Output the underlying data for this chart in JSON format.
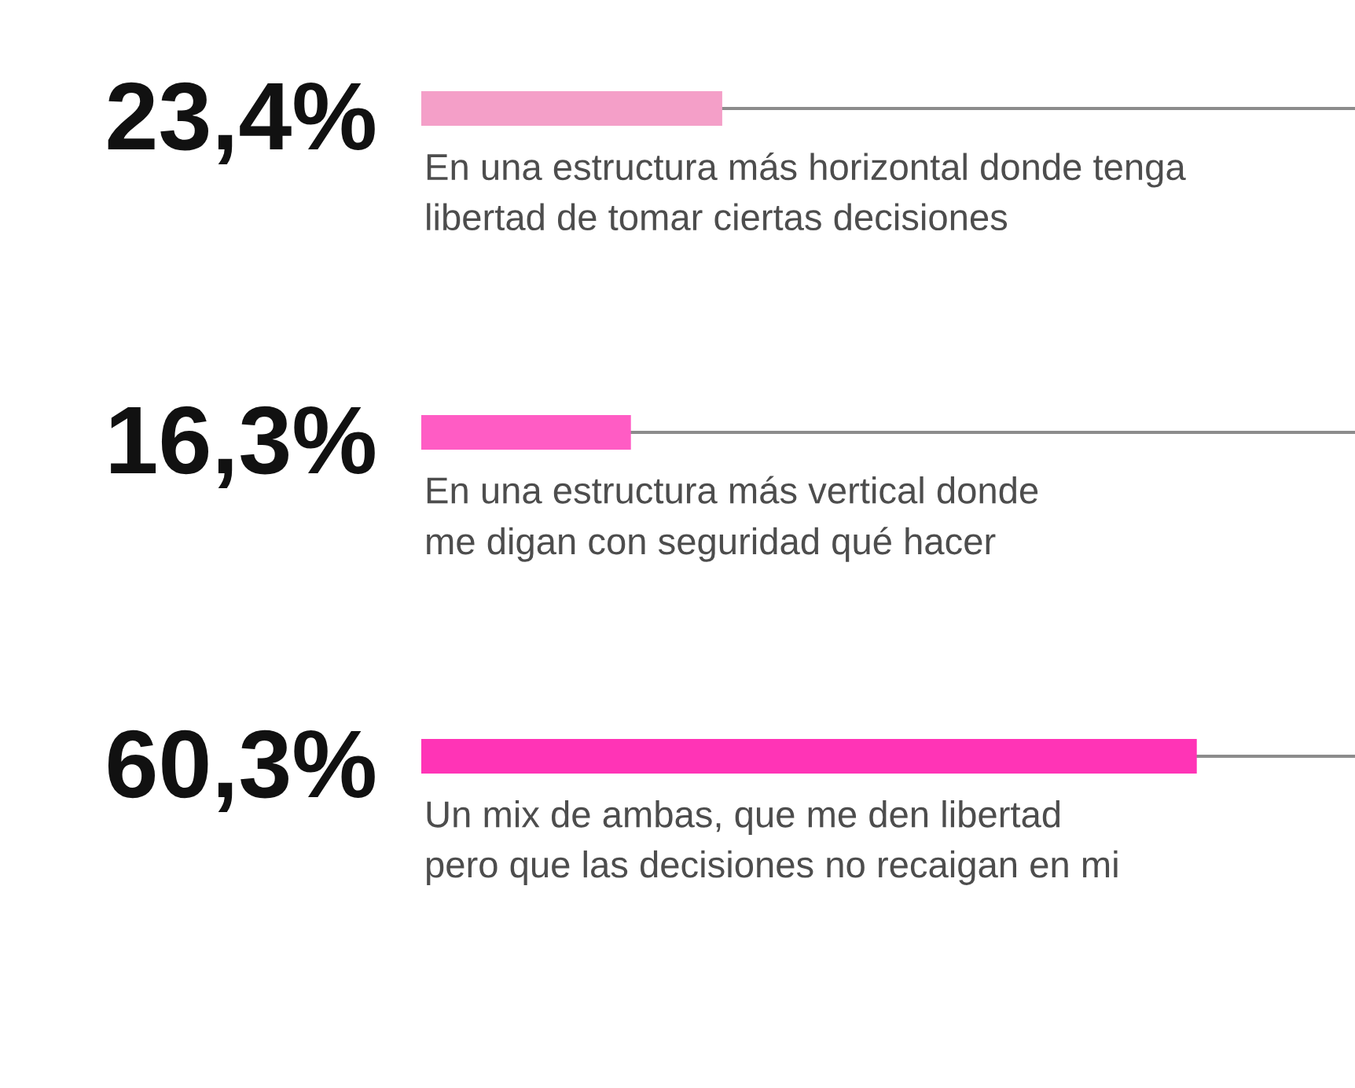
{
  "chart_data": {
    "type": "bar",
    "orientation": "horizontal",
    "categories": [
      "En una estructura más horizontal donde tenga\nlibertad de tomar ciertas decisiones",
      "En una estructura más vertical donde\nme digan con seguridad qué hacer",
      "Un mix de ambas, que me den libertad\npero que las decisiones no recaigan en mi"
    ],
    "values": [
      23.4,
      16.3,
      60.3
    ],
    "colors": [
      "#f49fc8",
      "#ff5cc4",
      "#ff34b6"
    ],
    "value_labels": [
      "23,4%",
      "16,3%",
      "60,3%"
    ],
    "grid": "y",
    "tick_labels": "y"
  }
}
